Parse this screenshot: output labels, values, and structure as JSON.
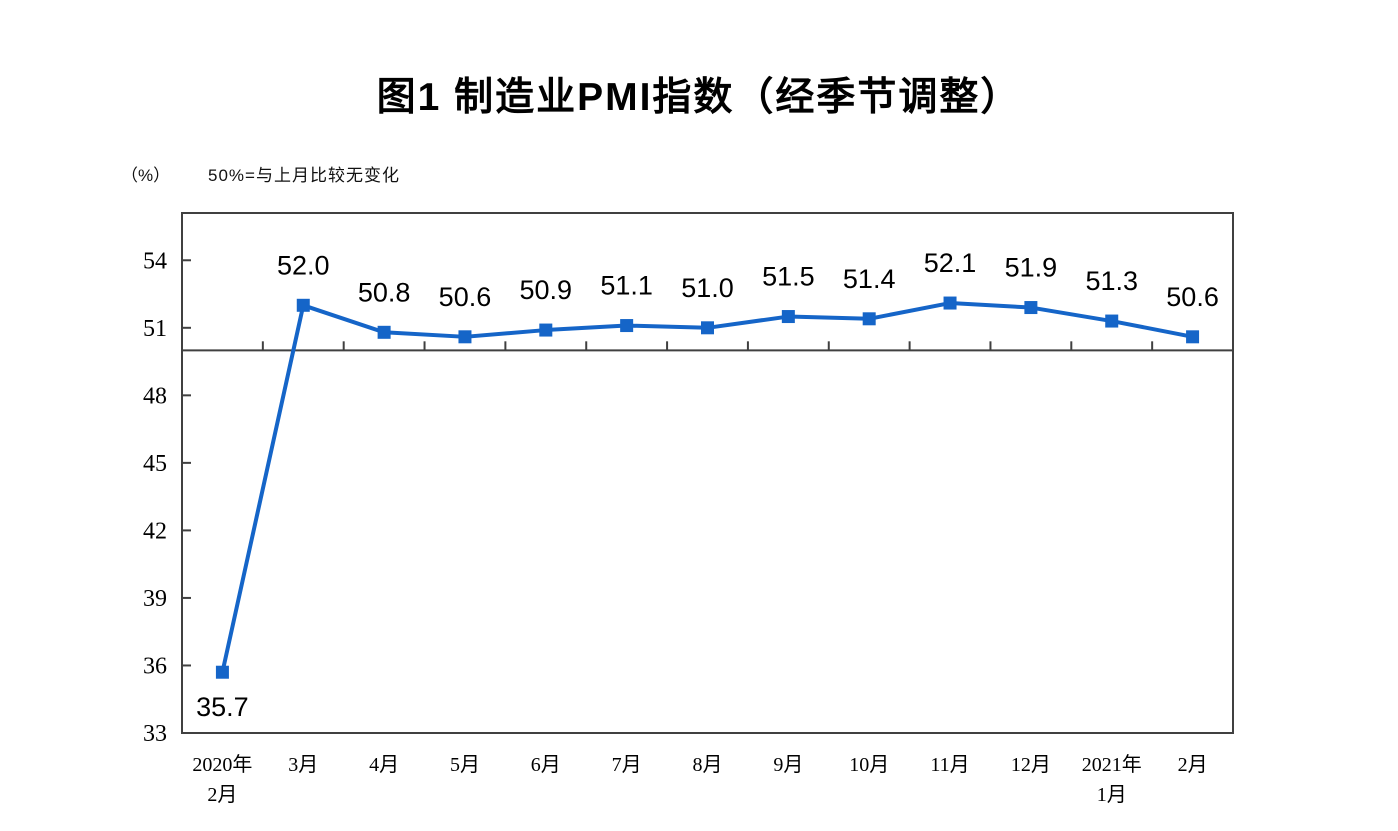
{
  "title": "图1 制造业PMI指数（经季节调整）",
  "axis_note": {
    "unit": "（%）",
    "note": "50%=与上月比较无变化"
  },
  "colors": {
    "line": "#1565C8",
    "marker": "#1565C8",
    "axis": "#404040",
    "text": "#000000",
    "background": "#ffffff"
  },
  "chart_data": {
    "type": "line",
    "title": "图1 制造业PMI指数（经季节调整）",
    "categories": [
      "2020年\n2月",
      "3月",
      "4月",
      "5月",
      "6月",
      "7月",
      "8月",
      "9月",
      "10月",
      "11月",
      "12月",
      "2021年\n1月",
      "2月"
    ],
    "values": [
      35.7,
      52.0,
      50.8,
      50.6,
      50.9,
      51.1,
      51.0,
      51.5,
      51.4,
      52.1,
      51.9,
      51.3,
      50.6
    ],
    "data_labels": [
      "35.7",
      "52.0",
      "50.8",
      "50.6",
      "50.9",
      "51.1",
      "51.0",
      "51.5",
      "51.4",
      "52.1",
      "51.9",
      "51.3",
      "50.6"
    ],
    "xlabel": "",
    "ylabel": "（%）",
    "ylim": [
      33,
      56.1
    ],
    "yticks": [
      33,
      36,
      39,
      42,
      45,
      48,
      51,
      54
    ],
    "reference_line": 50,
    "reference_line_label": "50%=与上月比较无变化",
    "grid": false,
    "legend": "none",
    "marker": "square"
  }
}
